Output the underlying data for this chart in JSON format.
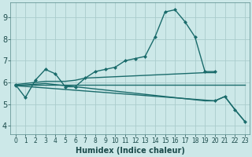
{
  "background_color": "#cce8e8",
  "grid_color": "#aacccc",
  "line_color": "#1a6b6b",
  "marker_size": 2.5,
  "line_width": 1.0,
  "xlabel": "Humidex (Indice chaleur)",
  "xlabel_fontsize": 7,
  "ytick_fontsize": 7,
  "xtick_fontsize": 5.5,
  "ylim": [
    3.6,
    9.7
  ],
  "xlim": [
    -0.5,
    23.5
  ],
  "yticks": [
    4,
    5,
    6,
    7,
    8,
    9
  ],
  "xticks": [
    0,
    1,
    2,
    3,
    4,
    5,
    6,
    7,
    8,
    9,
    10,
    11,
    12,
    13,
    14,
    15,
    16,
    17,
    18,
    19,
    20,
    21,
    22,
    23
  ],
  "series1_x": [
    0,
    1,
    2,
    3,
    4,
    5,
    6,
    7,
    8,
    9,
    10,
    11,
    12,
    13,
    14,
    15,
    16,
    17,
    18,
    19,
    20
  ],
  "series1_y": [
    5.9,
    5.3,
    6.1,
    6.6,
    6.4,
    5.8,
    5.8,
    6.2,
    6.5,
    6.6,
    6.7,
    7.0,
    7.1,
    7.2,
    8.1,
    9.25,
    9.35,
    8.8,
    8.1,
    6.5,
    6.5
  ],
  "series2_x": [
    0,
    3,
    4,
    5,
    6,
    7,
    19,
    20
  ],
  "series2_y": [
    5.9,
    6.05,
    6.05,
    6.05,
    6.1,
    6.2,
    6.45,
    6.45
  ],
  "series3_x": [
    0,
    23
  ],
  "series3_y": [
    5.9,
    5.9
  ],
  "series4_x": [
    0,
    3,
    4,
    5,
    6,
    7,
    8,
    9,
    10,
    11,
    12,
    13,
    14,
    15,
    16,
    17,
    18,
    19,
    20,
    21,
    22,
    23
  ],
  "series4_y": [
    5.85,
    5.95,
    5.9,
    5.85,
    5.8,
    5.75,
    5.7,
    5.65,
    5.6,
    5.55,
    5.5,
    5.45,
    5.4,
    5.35,
    5.3,
    5.25,
    5.2,
    5.15,
    5.15,
    5.35,
    4.75,
    4.2
  ],
  "series5_x": [
    0,
    20,
    21,
    22,
    23
  ],
  "series5_y": [
    5.85,
    5.15,
    5.35,
    4.75,
    4.2
  ]
}
